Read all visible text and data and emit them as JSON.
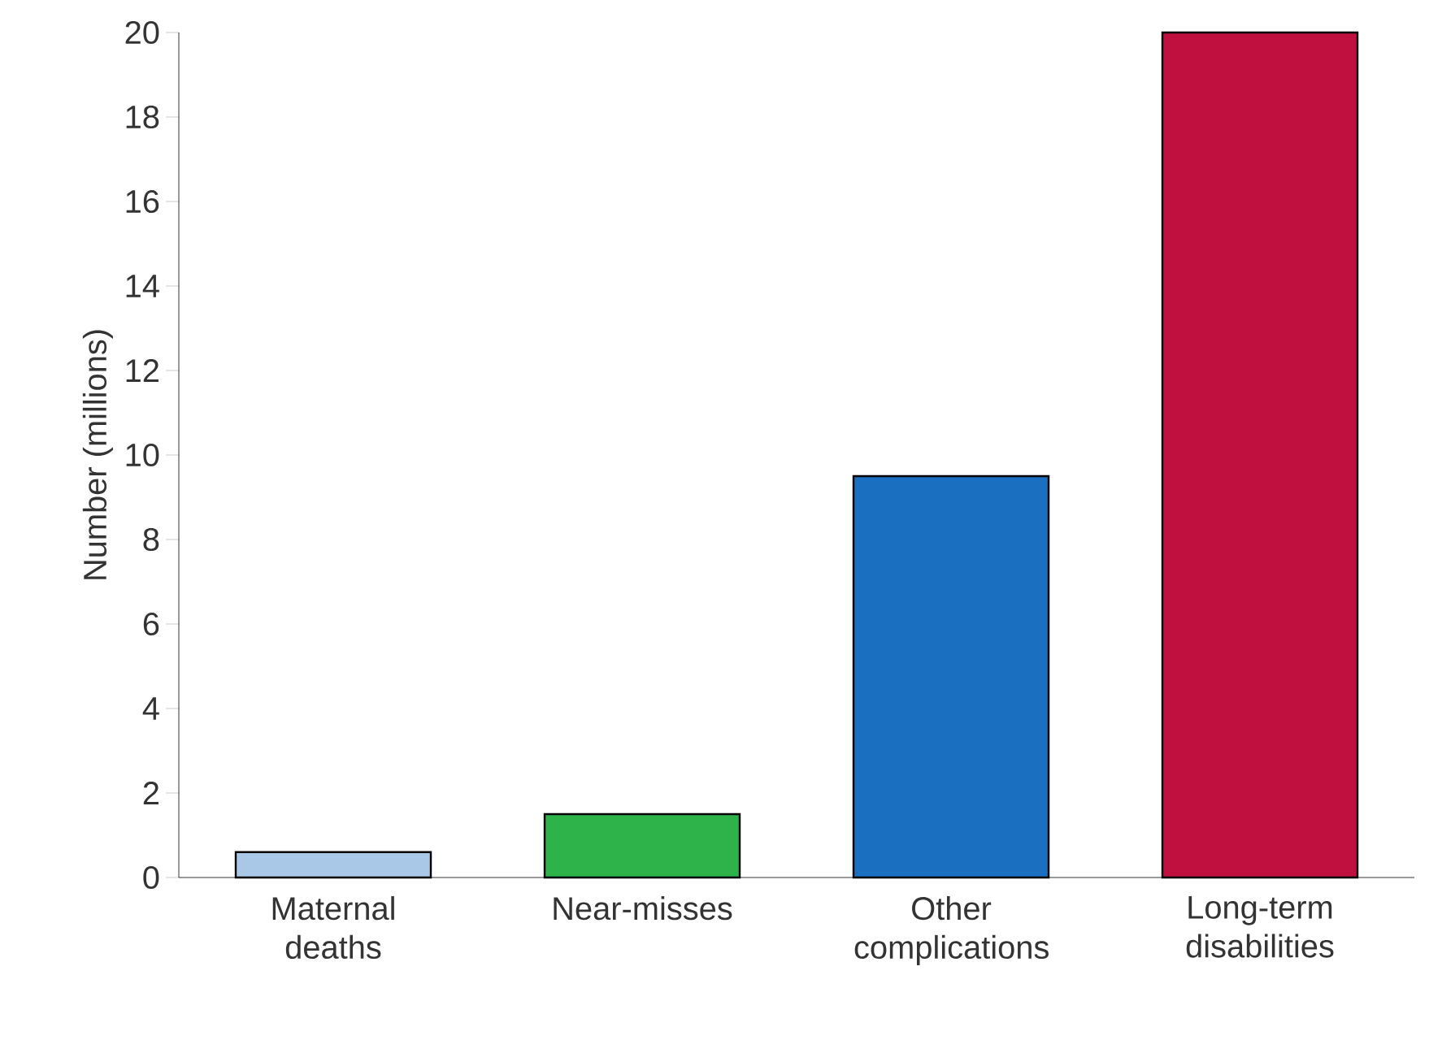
{
  "chart_data": {
    "type": "bar",
    "ylabel": "Number (millions)",
    "categories": [
      "Maternal deaths",
      "Near-misses",
      "Other complications",
      "Long-term disabilities"
    ],
    "values": [
      0.6,
      1.5,
      9.5,
      20
    ],
    "colors": [
      "#a9c8e8",
      "#2db34a",
      "#1a6fc0",
      "#c0103f"
    ],
    "ylim": [
      0,
      20
    ],
    "yticks": [
      0,
      2,
      4,
      6,
      8,
      10,
      12,
      14,
      16,
      18,
      20
    ]
  }
}
